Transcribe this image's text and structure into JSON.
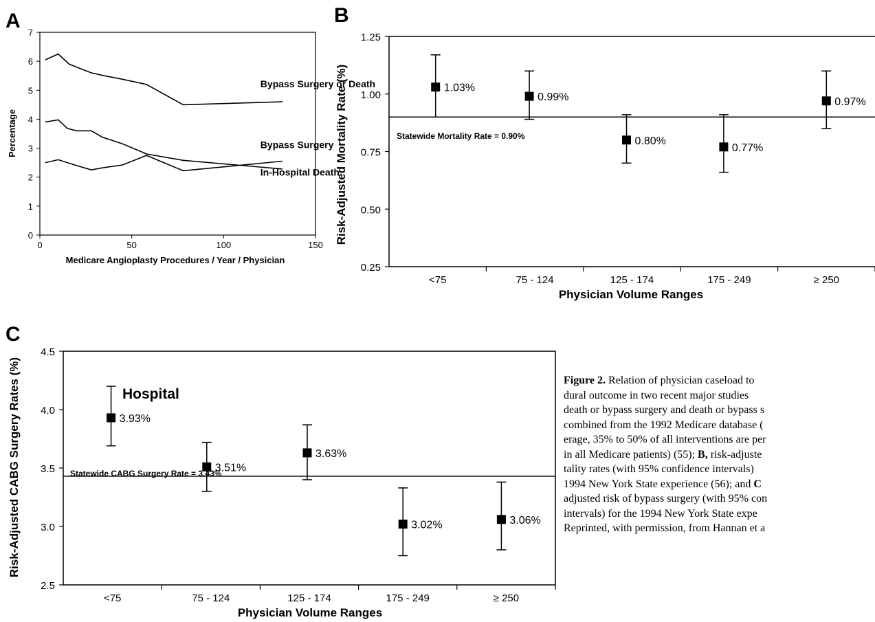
{
  "chart_data": [
    {
      "id": "A",
      "type": "line",
      "panel_label": "A",
      "xlabel": "Medicare Angioplasty Procedures / Year / Physician",
      "ylabel": "Percentage",
      "xlim": [
        0,
        150
      ],
      "ylim": [
        0,
        7
      ],
      "xticks": [
        "0",
        "50",
        "100",
        "150"
      ],
      "yticks": [
        "0",
        "1",
        "2",
        "3",
        "4",
        "5",
        "6",
        "7"
      ],
      "series": [
        {
          "name": "Bypass Surgery or Death",
          "x": [
            3,
            10,
            16,
            22,
            28,
            35,
            45,
            58,
            78,
            132
          ],
          "y": [
            6.05,
            6.25,
            5.9,
            5.75,
            5.6,
            5.5,
            5.38,
            5.2,
            4.5,
            4.6
          ]
        },
        {
          "name": "Bypass Surgery",
          "x": [
            3,
            10,
            15,
            20,
            28,
            34,
            45,
            58,
            78,
            132
          ],
          "y": [
            3.9,
            3.98,
            3.68,
            3.6,
            3.6,
            3.38,
            3.15,
            2.8,
            2.58,
            2.28
          ]
        },
        {
          "name": "In-Hospital Death",
          "x": [
            3,
            10,
            20,
            28,
            34,
            45,
            58,
            78,
            132
          ],
          "y": [
            2.5,
            2.6,
            2.4,
            2.25,
            2.32,
            2.42,
            2.75,
            2.22,
            2.55
          ]
        }
      ]
    },
    {
      "id": "B",
      "type": "scatter",
      "panel_label": "B",
      "xlabel": "Physician Volume Ranges",
      "ylabel": "Risk-Adjusted Mortality Rate (%)",
      "ylim": [
        0.25,
        1.25
      ],
      "yticks": [
        "0.25",
        "0.50",
        "0.75",
        "1.00",
        "1.25"
      ],
      "categories": [
        "<75",
        "75 - 124",
        "125 - 174",
        "175 - 249",
        "≥ 250"
      ],
      "values": [
        1.03,
        0.99,
        0.8,
        0.77,
        0.97
      ],
      "ci_low": [
        0.9,
        0.89,
        0.7,
        0.66,
        0.85
      ],
      "ci_high": [
        1.17,
        1.1,
        0.91,
        0.91,
        1.1
      ],
      "value_labels": [
        "1.03%",
        "0.99%",
        "0.80%",
        "0.77%",
        "0.97%"
      ],
      "reference_line": {
        "value": 0.9,
        "label": "Statewide Mortality Rate = 0.90%"
      }
    },
    {
      "id": "C",
      "type": "scatter",
      "panel_label": "C",
      "xlabel": "Physician Volume Ranges",
      "ylabel": "Risk-Adjusted CABG Surgery Rates (%)",
      "ylim": [
        2.5,
        4.5
      ],
      "yticks": [
        "2.5",
        "3.0",
        "3.5",
        "4.0",
        "4.5"
      ],
      "categories": [
        "<75",
        "75 - 124",
        "125 - 174",
        "175 - 249",
        "≥ 250"
      ],
      "values": [
        3.93,
        3.51,
        3.63,
        3.02,
        3.06
      ],
      "ci_low": [
        3.69,
        3.3,
        3.4,
        2.75,
        2.8
      ],
      "ci_high": [
        4.2,
        3.72,
        3.87,
        3.33,
        3.38
      ],
      "value_labels": [
        "3.93%",
        "3.51%",
        "3.63%",
        "3.02%",
        "3.06%"
      ],
      "annotation": "Hospital",
      "reference_line": {
        "value": 3.43,
        "label": "Statewide CABG Surgery Rate = 3.43%"
      }
    }
  ],
  "caption_lines": [
    {
      "bold": "Figure 2.",
      "text": " Relation of physician caseload to"
    },
    {
      "bold": "",
      "text": "dural outcome in two recent major studies"
    },
    {
      "bold": "",
      "text": "death or bypass surgery and death or bypass s"
    },
    {
      "bold": "",
      "text": "combined from the 1992 Medicare database ("
    },
    {
      "bold": "",
      "text": "erage, 35% to 50% of all interventions are per"
    },
    {
      "bold": "",
      "text": "in all Medicare patients) (55); "
    },
    {
      "bold": "B,",
      "text": " risk-adjuste"
    },
    {
      "bold": "",
      "text": "tality rates (with 95% confidence intervals)"
    },
    {
      "bold": "",
      "text": "1994 New York State experience (56); and "
    },
    {
      "bold": "C",
      "text": ""
    },
    {
      "bold": "",
      "text": "adjusted risk of bypass surgery (with 95% con"
    },
    {
      "bold": "",
      "text": "intervals) for the 1994 New York State expe"
    },
    {
      "bold": "",
      "text": "Reprinted, with permission, from Hannan et a"
    }
  ]
}
